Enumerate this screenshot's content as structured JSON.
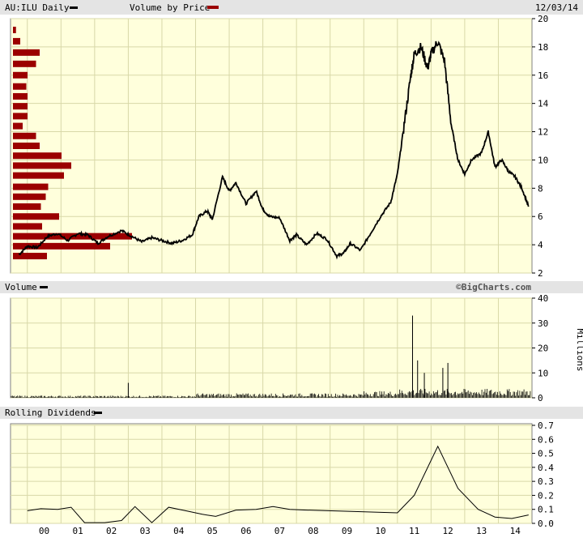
{
  "header": {
    "ticker": "AU:ILU Daily",
    "overlay": "Volume by Price",
    "date": "12/03/14"
  },
  "colors": {
    "plot_background": "#ffffdc",
    "grid": "#d8d8a8",
    "bar_background": "#e4e4e4",
    "price_line": "#000000",
    "volume_by_price": "#9b0000",
    "border": "#808080"
  },
  "volume_panel": {
    "title": "Volume",
    "credit": "©BigCharts.com",
    "unit_label": "Millions"
  },
  "dividend_panel": {
    "title": "Rolling Dividends"
  },
  "x_axis": {
    "tick_labels": [
      "00",
      "01",
      "02",
      "03",
      "04",
      "05",
      "06",
      "07",
      "08",
      "09",
      "10",
      "11",
      "12",
      "13",
      "14"
    ]
  },
  "chart_data": [
    {
      "type": "line",
      "panel": "price",
      "ylim": [
        2,
        20
      ],
      "y_ticks": [
        "2",
        "4",
        "6",
        "8",
        "10",
        "12",
        "14",
        "16",
        "18",
        "20"
      ],
      "series": [
        {
          "x": [
            1999.75,
            2000.0,
            2000.3,
            2000.6,
            2000.9,
            2001.2,
            2001.5,
            2001.8,
            2002.1,
            2002.4,
            2002.8,
            2003.1,
            2003.4,
            2003.7,
            2004.0,
            2004.3,
            2004.6,
            2004.9,
            2005.1,
            2005.35,
            2005.5,
            2005.8,
            2006.0,
            2006.2,
            2006.5,
            2006.8,
            2007.0,
            2007.2,
            2007.5,
            2007.8,
            2008.0,
            2008.3,
            2008.6,
            2008.9,
            2009.2,
            2009.4,
            2009.6,
            2009.9,
            2010.2,
            2010.5,
            2010.8,
            2011.0,
            2011.2,
            2011.4,
            2011.5,
            2011.7,
            2011.9,
            2012.0,
            2012.2,
            2012.4,
            2012.6,
            2012.8,
            2013.0,
            2013.2,
            2013.5,
            2013.7,
            2013.9,
            2014.1,
            2014.3,
            2014.5,
            2014.7,
            2014.9
          ],
          "values": [
            3.3,
            3.9,
            3.8,
            4.6,
            4.8,
            4.3,
            4.8,
            4.7,
            4.1,
            4.6,
            5.0,
            4.6,
            4.2,
            4.5,
            4.3,
            4.1,
            4.3,
            4.7,
            6.0,
            6.4,
            5.8,
            8.8,
            7.8,
            8.4,
            6.9,
            7.8,
            6.5,
            6.0,
            5.9,
            4.3,
            4.7,
            4.0,
            4.8,
            4.4,
            3.2,
            3.4,
            4.1,
            3.6,
            4.8,
            6.0,
            7.0,
            9.0,
            12.5,
            16.0,
            17.5,
            18.0,
            16.5,
            17.5,
            18.4,
            17.0,
            12.5,
            10.0,
            9.0,
            10.0,
            10.5,
            12.0,
            9.5,
            10.0,
            9.2,
            8.8,
            8.0,
            6.7
          ]
        }
      ]
    },
    {
      "type": "bar",
      "panel": "volume-by-price",
      "note": "horizontal bars, relative length 0-1, one per price band",
      "price_levels": [
        3.2,
        3.9,
        4.6,
        5.3,
        6.0,
        6.7,
        7.4,
        8.1,
        8.9,
        9.6,
        10.3,
        11.0,
        11.7,
        12.4,
        13.1,
        13.8,
        14.5,
        15.2,
        16.0,
        16.8,
        17.6,
        18.4,
        19.2
      ],
      "values": [
        0.28,
        0.8,
        0.98,
        0.24,
        0.38,
        0.23,
        0.27,
        0.29,
        0.42,
        0.48,
        0.4,
        0.22,
        0.19,
        0.08,
        0.12,
        0.12,
        0.12,
        0.11,
        0.12,
        0.19,
        0.22,
        0.06,
        0.025
      ]
    },
    {
      "type": "bar",
      "panel": "volume",
      "ylabel": "Millions",
      "ylim": [
        0,
        40
      ],
      "y_ticks": [
        "0",
        "10",
        "20",
        "30",
        "40"
      ],
      "spikes": {
        "x": [
          2003.0,
          2011.45,
          2011.6,
          2012.35,
          2012.5,
          2011.8
        ],
        "values": [
          6,
          33,
          15,
          12,
          14,
          10
        ]
      }
    },
    {
      "type": "line",
      "panel": "dividends",
      "ylim": [
        0,
        0.7
      ],
      "y_ticks": [
        "0.0",
        "0.1",
        "0.2",
        "0.3",
        "0.4",
        "0.5",
        "0.6",
        "0.7"
      ],
      "series": [
        {
          "x": [
            2000.0,
            2000.4,
            2000.9,
            2001.3,
            2001.7,
            2002.3,
            2002.8,
            2003.2,
            2003.7,
            2004.2,
            2004.7,
            2005.2,
            2005.6,
            2006.2,
            2006.8,
            2007.3,
            2007.8,
            2008.3,
            2011.0,
            2011.5,
            2012.2,
            2012.8,
            2013.4,
            2013.9,
            2014.4,
            2014.9
          ],
          "values": [
            0.09,
            0.105,
            0.1,
            0.115,
            0.005,
            0.005,
            0.02,
            0.12,
            0.005,
            0.115,
            0.09,
            0.065,
            0.05,
            0.095,
            0.1,
            0.12,
            0.1,
            0.095,
            0.075,
            0.2,
            0.55,
            0.25,
            0.1,
            0.045,
            0.035,
            0.06
          ]
        }
      ]
    }
  ]
}
